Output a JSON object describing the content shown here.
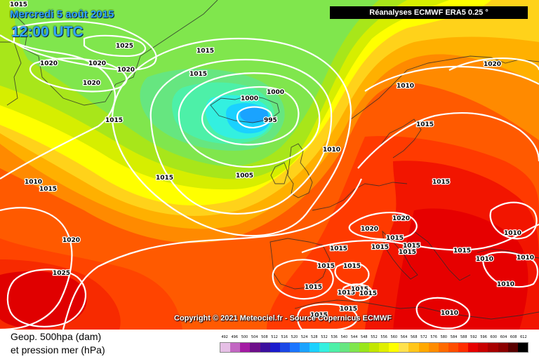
{
  "header": {
    "date": "Mercredi 5 août 2015",
    "time": "12:00 UTC",
    "source_tag": "Réanalyses ECMWF ERA5 0.25 °"
  },
  "copyright": "Copyright © 2021 Meteociel.fr - Source Copernicus ECMWF",
  "legend": {
    "line1": "Geop. 500hpa (dam)",
    "line2": "et pression mer (hPa)",
    "scale_values": [
      "492",
      "496",
      "500",
      "504",
      "508",
      "512",
      "516",
      "520",
      "524",
      "528",
      "532",
      "536",
      "540",
      "544",
      "548",
      "552",
      "556",
      "560",
      "564",
      "568",
      "572",
      "576",
      "580",
      "584",
      "588",
      "592",
      "596",
      "600",
      "604",
      "608",
      "612"
    ],
    "scale_colors": [
      "#e6bfe6",
      "#c266c2",
      "#a31aa3",
      "#6e0e8a",
      "#3b0f9e",
      "#1a1acc",
      "#1a47e6",
      "#1a75ff",
      "#1aa3ff",
      "#1ad1ff",
      "#33f0e0",
      "#4df0a8",
      "#66e680",
      "#80e64d",
      "#99e61a",
      "#c2e600",
      "#e0ef00",
      "#ffff00",
      "#ffe14d",
      "#ffc61a",
      "#ffa800",
      "#ff8c00",
      "#ff6a00",
      "#ff4d00",
      "#ff2d00",
      "#e60000",
      "#c80000",
      "#a80000",
      "#8c0000",
      "#5a0000",
      "#000000"
    ]
  },
  "isobar_labels": [
    "1015",
    "1025",
    "1020",
    "1020",
    "1020",
    "1020",
    "1015",
    "1015",
    "1000",
    "1000",
    "995",
    "1010",
    "1020",
    "1015",
    "1010",
    "1005",
    "1010",
    "1015",
    "1015",
    "1015",
    "1020",
    "1025",
    "1020",
    "1020",
    "1015",
    "1015",
    "1015",
    "1015",
    "1015",
    "1015",
    "1015",
    "1010",
    "1010",
    "1015",
    "1010",
    "1015",
    "1010",
    "1015",
    "1015",
    "1015",
    "1015",
    "1015",
    "1015",
    "1010"
  ],
  "map_regions": {
    "low_center_iceland": "995",
    "high_center_azores": "1025"
  }
}
